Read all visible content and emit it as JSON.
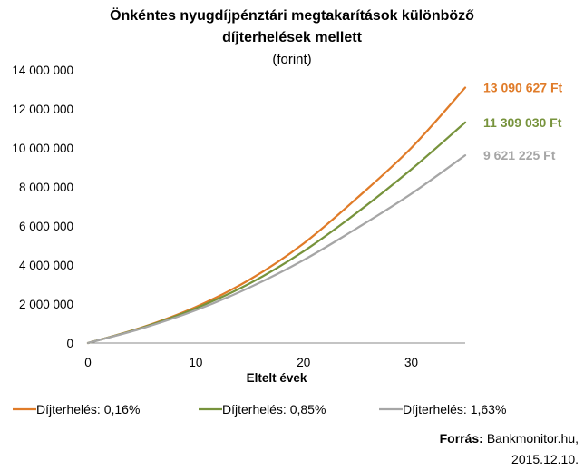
{
  "chart_data": {
    "type": "line",
    "title": [
      "Önkéntes nyugdíjpénztári megtakarítások különböző",
      "díjterhelések mellett"
    ],
    "subtitle": "(forint)",
    "xlabel": "Eltelt évek",
    "ylabel": "",
    "xlim": [
      0,
      35
    ],
    "ylim": [
      0,
      14000000
    ],
    "xticks": [
      0,
      10,
      20,
      30
    ],
    "xtick_labels": [
      "0",
      "10",
      "20",
      "30"
    ],
    "yticks": [
      0,
      2000000,
      4000000,
      6000000,
      8000000,
      10000000,
      12000000,
      14000000
    ],
    "ytick_labels": [
      "0",
      "2 000 000",
      "4 000 000",
      "6 000 000",
      "8 000 000",
      "10 000 000",
      "12 000 000",
      "14 000 000"
    ],
    "grid": false,
    "legend_position": "bottom",
    "x": [
      0,
      5,
      10,
      15,
      20,
      25,
      30,
      35
    ],
    "series": [
      {
        "name": "Díjterhelés: 0,16%",
        "color": "#E07B28",
        "values": [
          0,
          800000,
          1850000,
          3250000,
          5100000,
          7450000,
          10000000,
          13090627
        ],
        "end_label": "13 090 627 Ft"
      },
      {
        "name": "Díjterhelés:  0,85%",
        "color": "#77933C",
        "values": [
          0,
          780000,
          1780000,
          3050000,
          4700000,
          6700000,
          8900000,
          11309030
        ],
        "end_label": "11 309 030 Ft"
      },
      {
        "name": "Díjterhelés: 1,63%",
        "color": "#A6A6A6",
        "values": [
          0,
          750000,
          1680000,
          2850000,
          4250000,
          5900000,
          7650000,
          9621225
        ],
        "end_label": "9 621 225 Ft"
      }
    ]
  },
  "source": {
    "label": "Forrás:",
    "text": "Bankmonitor.hu,",
    "date": "2015.12.10."
  }
}
